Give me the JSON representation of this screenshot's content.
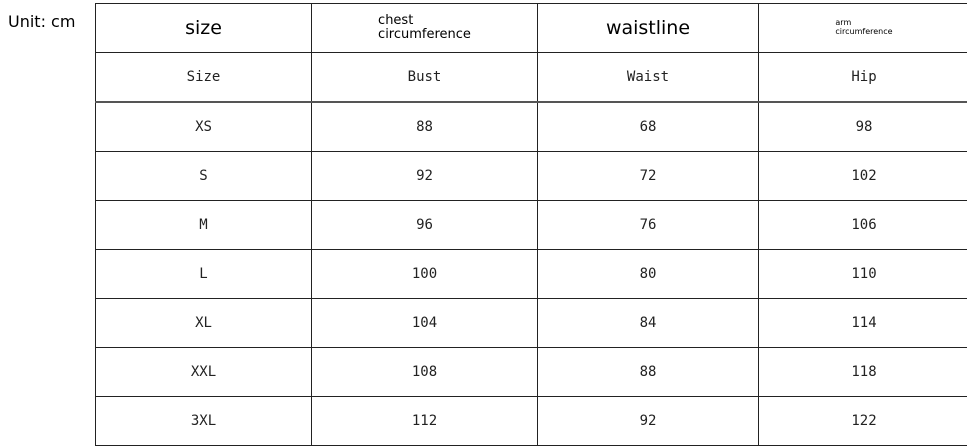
{
  "unit_label": "Unit: cm",
  "header": {
    "col1": "size",
    "col2_line1": "chest",
    "col2_line2": "circumference",
    "col3": "waistline",
    "col4_line1": "arm",
    "col4_line2": "circumference"
  },
  "subheader": [
    "Size",
    "Bust",
    "Waist",
    "Hip"
  ],
  "rows": [
    [
      "XS",
      "88",
      "68",
      "98"
    ],
    [
      "S",
      "92",
      "72",
      "102"
    ],
    [
      "M",
      "96",
      "76",
      "106"
    ],
    [
      "L",
      "100",
      "80",
      "110"
    ],
    [
      "XL",
      "104",
      "84",
      "114"
    ],
    [
      "XXL",
      "108",
      "88",
      "118"
    ],
    [
      "3XL",
      "112",
      "92",
      "122"
    ]
  ]
}
